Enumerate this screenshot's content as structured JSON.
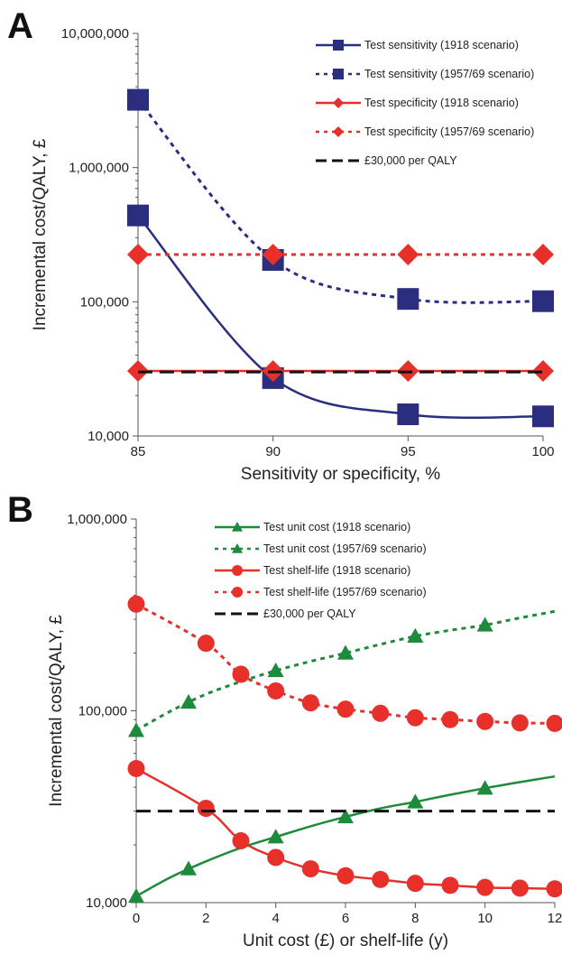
{
  "chart_data": [
    {
      "panel": "A",
      "type": "line",
      "xlabel": "Sensitivity or specificity, %",
      "ylabel": "Incremental cost/QALY, £",
      "yscale": "log",
      "ylim": [
        10000,
        10000000
      ],
      "xlim": [
        85,
        100
      ],
      "x_ticks": [
        85,
        90,
        95,
        100
      ],
      "x_tick_labels": [
        "85",
        "90",
        "95",
        "100"
      ],
      "y_ticks": [
        10000,
        100000,
        1000000,
        10000000
      ],
      "y_tick_labels": [
        "10,000",
        "100,000",
        "1,000,000",
        "10,000,000"
      ],
      "legend_position": "top-right",
      "series": [
        {
          "name": "Test sensitivity (1918 scenario)",
          "color": "#2b2e7f",
          "line": "solid",
          "marker": "square",
          "x": [
            85,
            90,
            95,
            100
          ],
          "y": [
            440000,
            27000,
            14500,
            14000
          ]
        },
        {
          "name": "Test sensitivity (1957/69 scenario)",
          "color": "#2b2e7f",
          "line": "dotted",
          "marker": "square",
          "x": [
            85,
            90,
            95,
            100
          ],
          "y": [
            3200000,
            205000,
            105000,
            101000
          ]
        },
        {
          "name": "Test specificity (1918 scenario)",
          "color": "#e8302a",
          "line": "solid",
          "marker": "diamond",
          "x": [
            85,
            90,
            95,
            100
          ],
          "y": [
            30500,
            30500,
            30500,
            30500
          ]
        },
        {
          "name": "Test specificity (1957/69 scenario)",
          "color": "#e8302a",
          "line": "dotted",
          "marker": "diamond",
          "x": [
            85,
            90,
            95,
            100
          ],
          "y": [
            225000,
            225000,
            225000,
            225000
          ]
        },
        {
          "name": "£30,000 per QALY",
          "color": "#111111",
          "line": "dashed",
          "marker": "none",
          "x": [
            85,
            100
          ],
          "y": [
            30000,
            30000
          ]
        }
      ]
    },
    {
      "panel": "B",
      "type": "line",
      "xlabel": "Unit cost (£) or shelf-life (y)",
      "ylabel": "Incremental cost/QALY, £",
      "yscale": "log",
      "ylim": [
        10000,
        1000000
      ],
      "xlim": [
        0,
        12
      ],
      "x_ticks": [
        0,
        2,
        4,
        6,
        8,
        10,
        12
      ],
      "x_tick_labels": [
        "0",
        "2",
        "4",
        "6",
        "8",
        "10",
        "12"
      ],
      "y_ticks": [
        10000,
        100000,
        1000000
      ],
      "y_tick_labels": [
        "10,000",
        "100,000",
        "1,000,000"
      ],
      "legend_position": "top-right",
      "series": [
        {
          "name": "Test unit cost (1918 scenario)",
          "color": "#1e8a3c",
          "line": "solid",
          "marker": "triangle",
          "x": [
            0,
            1.5,
            4,
            6,
            8,
            10
          ],
          "y": [
            10800,
            15000,
            22000,
            28000,
            33500,
            39500
          ],
          "curve_x": [
            0,
            1,
            2,
            3,
            4,
            5,
            6,
            7,
            8,
            9,
            10,
            11,
            12
          ],
          "curve_y": [
            10800,
            13600,
            16400,
            19300,
            22000,
            25000,
            28000,
            31000,
            33500,
            36500,
            39500,
            42500,
            45500
          ]
        },
        {
          "name": "Test unit cost (1957/69 scenario)",
          "color": "#1e8a3c",
          "line": "dotted",
          "marker": "triangle",
          "x": [
            0,
            1.5,
            4,
            6,
            8,
            10
          ],
          "y": [
            79000,
            111000,
            162000,
            200000,
            245000,
            280000
          ],
          "curve_x": [
            0,
            1,
            2,
            3,
            4,
            5,
            6,
            7,
            8,
            9,
            10,
            11,
            12
          ],
          "curve_y": [
            79000,
            100000,
            122000,
            142000,
            162000,
            181000,
            200000,
            222000,
            245000,
            263000,
            280000,
            305000,
            330000
          ]
        },
        {
          "name": "Test shelf-life (1918 scenario)",
          "color": "#e8302a",
          "line": "solid",
          "marker": "circle",
          "x": [
            0,
            2,
            3,
            4,
            5,
            6,
            7,
            8,
            9,
            10,
            11,
            12
          ],
          "y": [
            50000,
            31000,
            21000,
            17200,
            15000,
            13800,
            13200,
            12600,
            12300,
            12000,
            11900,
            11800
          ]
        },
        {
          "name": "Test shelf-life (1957/69 scenario)",
          "color": "#e8302a",
          "line": "dotted",
          "marker": "circle",
          "x": [
            0,
            2,
            3,
            4,
            5,
            6,
            7,
            8,
            9,
            10,
            11,
            12
          ],
          "y": [
            360000,
            225000,
            155000,
            127000,
            110000,
            102000,
            97000,
            92000,
            90000,
            88000,
            86500,
            86000
          ]
        },
        {
          "name": "£30,000 per QALY",
          "color": "#111111",
          "line": "dashed",
          "marker": "none",
          "x": [
            0,
            12
          ],
          "y": [
            30000,
            30000
          ]
        }
      ]
    }
  ]
}
